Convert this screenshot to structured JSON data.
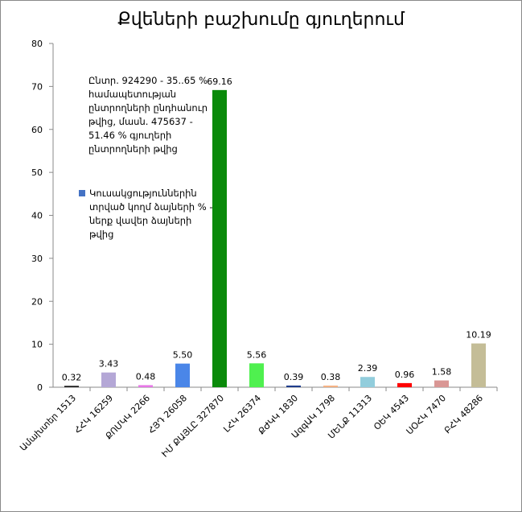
{
  "title": "Քվեների բաշխումը գյուղերում",
  "note": "Ընտր. 924290 - 35..65 % համապետության ընտրողների ընդհանուր թվից, մասն. 475637 - 51.46 % գյուղերի ընտրողների թվից",
  "legend": {
    "label": "Կուսակցություններին տրված կողմ ձայների % - ներք վավեր ձայների թվից",
    "color": "#4472c4"
  },
  "chart_data": {
    "type": "bar",
    "ylim": [
      0,
      80
    ],
    "yticks": [
      0,
      10,
      20,
      30,
      40,
      50,
      60,
      70,
      80
    ],
    "categories": [
      "Ամախտեր 1513",
      "ՀՀԿ 16259",
      "ՔՈՄԿԿ 2266",
      "ՀՅԴ 26058",
      "ԻՄ ՔԱՅԼԸ 327870",
      "ԼՀԿ 26374",
      "ՔԺԿԿ 1830",
      "ԱզգԱԿ 1798",
      "ՄԵՆՔ 11313",
      "ՕԵԿ 4543",
      "ՍՕՀԿ 7470",
      "ԲՀԿ 48286"
    ],
    "values": [
      0.32,
      3.43,
      0.48,
      5.5,
      69.16,
      5.56,
      0.39,
      0.38,
      2.39,
      0.96,
      1.58,
      10.19
    ],
    "value_labels": [
      "0.32",
      "3.43",
      "0.48",
      "5.50",
      "69.16",
      "5.56",
      "0.39",
      "0.38",
      "2.39",
      "0.96",
      "1.58",
      "10.19"
    ],
    "colors": [
      "#1a1a1a",
      "#b4a7d6",
      "#e676e6",
      "#4a86e8",
      "#0a8a0a",
      "#4ff04f",
      "#1f3d8c",
      "#f4b183",
      "#92cddc",
      "#ff0000",
      "#d99694",
      "#c4bd97"
    ],
    "grid": false
  }
}
